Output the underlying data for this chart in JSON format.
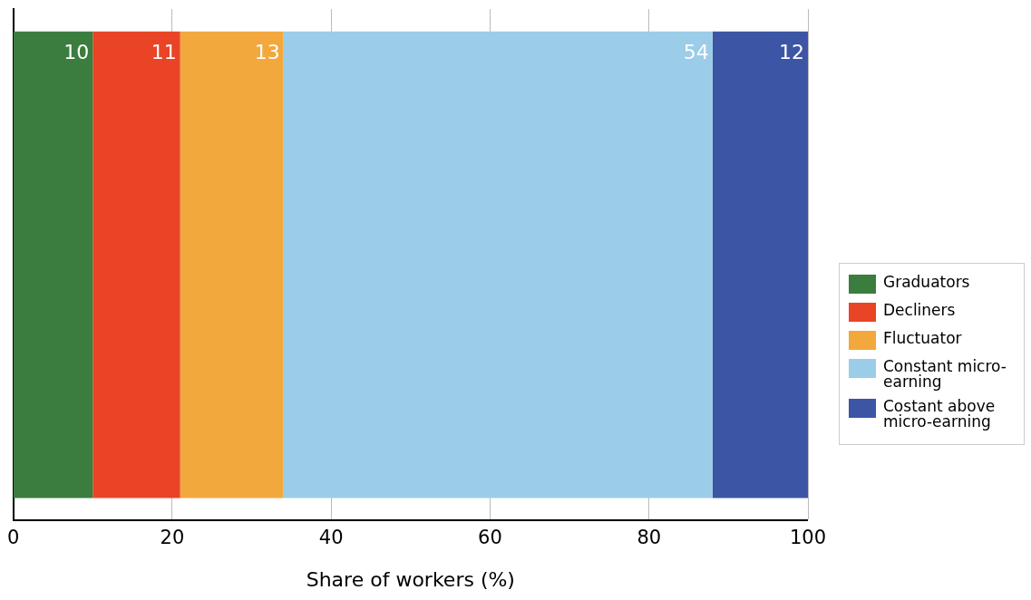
{
  "chart_data": {
    "type": "bar",
    "orientation": "horizontal",
    "stacked": true,
    "xlabel": "Share of workers (%)",
    "categories": [
      null
    ],
    "series": [
      {
        "name": "Graduators",
        "color": "#3a7d3e",
        "values": [
          10
        ]
      },
      {
        "name": "Decliners",
        "color": "#e94426",
        "values": [
          11
        ]
      },
      {
        "name": "Fluctuator",
        "color": "#f2a83c",
        "values": [
          13
        ]
      },
      {
        "name": "Constant micro-earning",
        "color": "#9bcde8",
        "values": [
          54
        ]
      },
      {
        "name": "Costant above micro-earning",
        "color": "#3c55a5",
        "values": [
          12
        ]
      }
    ],
    "xlim": [
      0,
      100
    ],
    "xticks": [
      0,
      20,
      40,
      60,
      80,
      100
    ],
    "grid": "x",
    "legend": "right",
    "tick_labels": "x",
    "data_labels": true
  }
}
